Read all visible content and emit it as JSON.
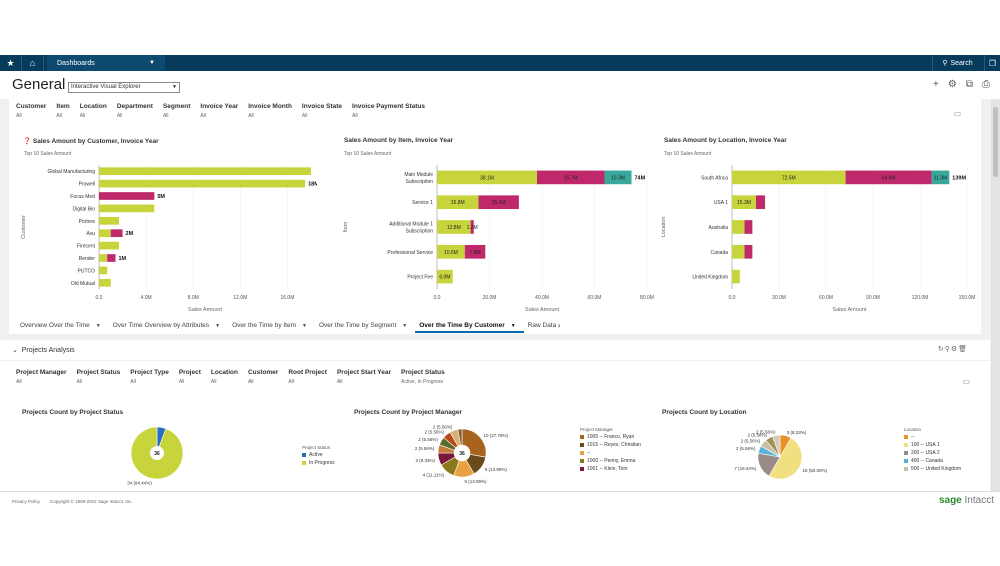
{
  "nav": {
    "dashboards_label": "Dashboards",
    "search_label": "Search"
  },
  "header": {
    "title": "General",
    "view_select": "Interactive Visual Explorer"
  },
  "filters": [
    {
      "label": "Customer",
      "value": "All"
    },
    {
      "label": "Item",
      "value": "All"
    },
    {
      "label": "Location",
      "value": "All"
    },
    {
      "label": "Department",
      "value": "All"
    },
    {
      "label": "Segment",
      "value": "All"
    },
    {
      "label": "Invoice Year",
      "value": "All"
    },
    {
      "label": "Invoice Month",
      "value": "All"
    },
    {
      "label": "Invoice State",
      "value": "All"
    },
    {
      "label": "Invoice Payment Status",
      "value": "All"
    }
  ],
  "tabs": [
    {
      "label": "Overview Over the Time"
    },
    {
      "label": "Over Time Overview by Attributes"
    },
    {
      "label": "Over the Time by Item"
    },
    {
      "label": "Over the Time by Segment"
    },
    {
      "label": "Over the Time By Customer"
    },
    {
      "label": "Raw Data"
    }
  ],
  "chart_data": [
    {
      "type": "bar",
      "title": "Sales Amount by Customer, Invoice Year",
      "subtitle": "Top 10 Sales Amount",
      "xlabel": "Sales Amount",
      "ylabel": "Customer",
      "xlim": [
        0,
        18000000
      ],
      "x_ticks": [
        "0.0",
        "4.0M",
        "8.0M",
        "12.0M",
        "16.0M"
      ],
      "categories": [
        "Global Manufacturing",
        "Prowell",
        "Focus Med",
        "Digital Bio",
        "Portore",
        "Avu",
        "Firecent",
        "Render",
        "PUTCO",
        "Old Mutual"
      ],
      "series": [
        {
          "color": "#c8d43c",
          "values": [
            18000000,
            17500000,
            0,
            4700000,
            1700000,
            1000000,
            1700000,
            700000,
            700000,
            1000000
          ]
        },
        {
          "color": "#c0286c",
          "values": [
            0,
            0,
            4700000,
            0,
            0,
            1000000,
            0,
            700000,
            0,
            0
          ]
        }
      ],
      "totals": [
        "",
        "18M",
        "5M",
        "",
        "",
        "2M",
        "",
        "1M",
        "",
        ""
      ]
    },
    {
      "type": "bar",
      "title": "Sales Amount by Item, Invoice Year",
      "subtitle": "Top 10 Sales Amount",
      "xlabel": "Sales Amount",
      "ylabel": "Item",
      "xlim": [
        0,
        80000000
      ],
      "x_ticks": [
        "0.0",
        "20.0M",
        "40.0M",
        "60.0M",
        "80.0M"
      ],
      "categories": [
        "Main Module Subscription",
        "Service 1",
        "Additional Module 1 Subscription",
        "Professional Service",
        "Project Fee"
      ],
      "series": [
        {
          "color": "#c8d43c",
          "values": [
            38100000,
            15800000,
            12800000,
            10600000,
            6000000
          ]
        },
        {
          "color": "#c0286c",
          "values": [
            25700000,
            15400000,
            1200000,
            7800000,
            0
          ]
        },
        {
          "color": "#3aa89a",
          "values": [
            10300000,
            0,
            0,
            0,
            0
          ]
        }
      ],
      "labels": [
        [
          "38.1M",
          "25.7M",
          "10.3M"
        ],
        [
          "15.8M",
          "15.4M",
          ""
        ],
        [
          "12.8M",
          "1.2M",
          ""
        ],
        [
          "10.6M",
          "7.8M",
          ""
        ],
        [
          "6.0M",
          "",
          ""
        ]
      ],
      "totals": [
        "74M",
        "",
        "",
        "",
        ""
      ]
    },
    {
      "type": "bar",
      "title": "Sales Amount by Location, Invoice Year",
      "subtitle": "Top 10 Sales Amount",
      "xlabel": "Sales Amount",
      "ylabel": "Location",
      "xlim": [
        0,
        150000000
      ],
      "x_ticks": [
        "0.0",
        "30.0M",
        "60.0M",
        "90.0M",
        "120.0M",
        "150.0M"
      ],
      "categories": [
        "South Africa",
        "USA 1",
        "Australia",
        "Canada",
        "United Kingdom"
      ],
      "series": [
        {
          "color": "#c8d43c",
          "values": [
            72500000,
            15300000,
            8000000,
            8000000,
            5000000
          ]
        },
        {
          "color": "#c0286c",
          "values": [
            54900000,
            5800000,
            5000000,
            5000000,
            0
          ]
        },
        {
          "color": "#3aa89a",
          "values": [
            11300000,
            0,
            0,
            0,
            0
          ]
        }
      ],
      "labels": [
        [
          "72.5M",
          "54.9M",
          "11.3M"
        ],
        [
          "15.3M",
          "",
          ""
        ],
        [
          "",
          "",
          ""
        ],
        [
          "",
          "",
          ""
        ],
        [
          "",
          "",
          ""
        ]
      ],
      "totals": [
        "139M",
        "",
        "",
        "",
        ""
      ]
    },
    {
      "type": "pie",
      "title": "Projects Count by Project Status",
      "center_label": "36",
      "legend_title": "Project Status",
      "slices": [
        {
          "name": "Active",
          "value": 2,
          "color": "#2a6fbe"
        },
        {
          "name": "In Progress",
          "value": 34,
          "color": "#c8d43c",
          "label": "34 (94.44%)"
        }
      ]
    },
    {
      "type": "pie",
      "title": "Projects Count by Project Manager",
      "center_label": "36",
      "legend_title": "Project Manager",
      "slices": [
        {
          "name": "1005 -- Franco, Ryan",
          "value": 10,
          "color": "#a8641e",
          "label": "10 (27.78%)"
        },
        {
          "name": "1015 -- Reyes, Christian",
          "value": 5,
          "color": "#6a4a1a",
          "label": "5 (13.89%)"
        },
        {
          "name": "--",
          "value": 5,
          "color": "#e8a040",
          "label": "5 (13.89%)"
        },
        {
          "name": "1000 -- Penny, Emma",
          "value": 4,
          "color": "#8a7a1a",
          "label": "4 (11.11%)"
        },
        {
          "name": "1001 -- Klein, Tom",
          "value": 3,
          "color": "#7a1a3a",
          "label": "3 (8.33%)"
        },
        {
          "name": "",
          "value": 2,
          "color": "#c87a3a",
          "label": "2 (5.56%)"
        },
        {
          "name": "",
          "value": 2,
          "color": "#5a6a2a",
          "label": "2 (5.56%)"
        },
        {
          "name": "",
          "value": 2,
          "color": "#b84a1a",
          "label": "2 (5.56%)"
        },
        {
          "name": "",
          "value": 2,
          "color": "#d8b070",
          "label": "2 (5.56%)"
        },
        {
          "name": "",
          "value": 1,
          "color": "#8a5a3a",
          "label": ""
        }
      ]
    },
    {
      "type": "pie",
      "title": "Projects Count by Location",
      "legend_title": "Location",
      "slices": [
        {
          "name": "--",
          "value": 3,
          "color": "#e8902a",
          "label": "3 (8.33%)"
        },
        {
          "name": "100 -- USA 1",
          "value": 18,
          "color": "#f0e080",
          "label": "18 (50.00%)"
        },
        {
          "name": "200 -- USA 2",
          "value": 7,
          "color": "#9a8a8a",
          "label": "7 (19.44%)"
        },
        {
          "name": "400 -- Canada",
          "value": 2,
          "color": "#5ab0d8",
          "label": "2 (5.56%)"
        },
        {
          "name": "500 -- United Kingdom",
          "value": 2,
          "color": "#c8c0a0",
          "label": "2 (5.56%)"
        },
        {
          "name": "",
          "value": 2,
          "color": "#a0905a",
          "label": "2 (5.56%)"
        },
        {
          "name": "",
          "value": 2,
          "color": "#d8c8b8",
          "label": "2 (5.56%)"
        }
      ]
    }
  ],
  "projects": {
    "title": "Projects Analysis",
    "filters": [
      {
        "label": "Project Manager",
        "value": "All"
      },
      {
        "label": "Project Status",
        "value": "All"
      },
      {
        "label": "Project Type",
        "value": "All"
      },
      {
        "label": "Project",
        "value": "All"
      },
      {
        "label": "Location",
        "value": "All"
      },
      {
        "label": "Customer",
        "value": "All"
      },
      {
        "label": "Root Project",
        "value": "All"
      },
      {
        "label": "Project Start Year",
        "value": "All"
      },
      {
        "label": "Project Status",
        "value": "Active, In Progress"
      }
    ]
  },
  "footer": {
    "privacy": "Privacy Policy",
    "copyright": "Copyright © 1999-2022 Sage Intacct, Inc.",
    "logo_sage": "sage",
    "logo_intacct": "Intacct"
  }
}
